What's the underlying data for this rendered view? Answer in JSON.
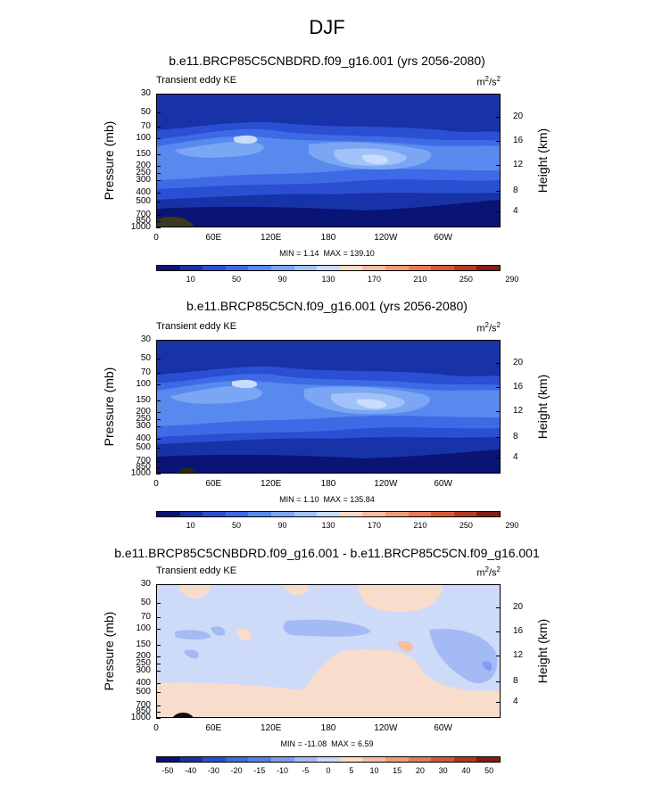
{
  "figure": {
    "title": "DJF"
  },
  "colors": {
    "abs_palette": [
      "#0a1475",
      "#1832a8",
      "#2a4fd2",
      "#3e6ae6",
      "#5889ee",
      "#7aa6f4",
      "#a0c2f8",
      "#c9dcfb",
      "#f7d8c8",
      "#f6bba0",
      "#f29a78",
      "#e97954",
      "#d85a35",
      "#b43a22",
      "#861c12"
    ],
    "diff_palette": [
      "#0a1475",
      "#1832a8",
      "#2a4fd2",
      "#3e6ae6",
      "#5a7fe8",
      "#7f9cf0",
      "#a4baf5",
      "#cddbf8",
      "#f8ddcc",
      "#f3c0a3",
      "#ee9d7b",
      "#e47a57",
      "#d35737",
      "#b23722",
      "#861c12"
    ]
  },
  "chart_data": [
    {
      "type": "heatmap",
      "title": "b.e11.BRCP85C5CNBDRD.f09_g16.001 (yrs 2056-2080)",
      "field": "Transient eddy KE",
      "units_base": "m",
      "units_exp1": "2",
      "units_sep": "/s",
      "units_exp2": "2",
      "ylabel": "Pressure (mb)",
      "ylabel_right": "Height (km)",
      "yticks": [
        "30",
        "50",
        "70",
        "100",
        "150",
        "200",
        "250",
        "300",
        "400",
        "500",
        "700",
        "850",
        "1000"
      ],
      "yticks_right": [
        "20",
        "16",
        "12",
        "8",
        "4"
      ],
      "xticks": [
        "0",
        "60E",
        "120E",
        "180",
        "120W",
        "60W"
      ],
      "min_label": "MIN =",
      "min": "1.14",
      "max_label": "MAX =",
      "max": "139.10",
      "colorbar_labels": [
        "10",
        "50",
        "90",
        "130",
        "170",
        "210",
        "250",
        "290"
      ]
    },
    {
      "type": "heatmap",
      "title": "b.e11.BRCP85C5CN.f09_g16.001 (yrs 2056-2080)",
      "field": "Transient eddy KE",
      "units_base": "m",
      "units_exp1": "2",
      "units_sep": "/s",
      "units_exp2": "2",
      "ylabel": "Pressure (mb)",
      "ylabel_right": "Height (km)",
      "yticks": [
        "30",
        "50",
        "70",
        "100",
        "150",
        "200",
        "250",
        "300",
        "400",
        "500",
        "700",
        "850",
        "1000"
      ],
      "yticks_right": [
        "20",
        "16",
        "12",
        "8",
        "4"
      ],
      "xticks": [
        "0",
        "60E",
        "120E",
        "180",
        "120W",
        "60W"
      ],
      "min_label": "MIN =",
      "min": "1.10",
      "max_label": "MAX =",
      "max": "135.84",
      "colorbar_labels": [
        "10",
        "50",
        "90",
        "130",
        "170",
        "210",
        "250",
        "290"
      ]
    },
    {
      "type": "heatmap",
      "title": "b.e11.BRCP85C5CNBDRD.f09_g16.001 - b.e11.BRCP85C5CN.f09_g16.001",
      "field": "Transient eddy KE",
      "units_base": "m",
      "units_exp1": "2",
      "units_sep": "/s",
      "units_exp2": "2",
      "ylabel": "Pressure (mb)",
      "ylabel_right": "Height (km)",
      "yticks": [
        "30",
        "50",
        "70",
        "100",
        "150",
        "200",
        "250",
        "300",
        "400",
        "500",
        "700",
        "850",
        "1000"
      ],
      "yticks_right": [
        "20",
        "16",
        "12",
        "8",
        "4"
      ],
      "xticks": [
        "0",
        "60E",
        "120E",
        "180",
        "120W",
        "60W"
      ],
      "min_label": "MIN =",
      "min": "-11.08",
      "max_label": "MAX =",
      "max": "6.59",
      "colorbar_labels": [
        "-50",
        "-40",
        "-30",
        "-20",
        "-15",
        "-10",
        "-5",
        "0",
        "5",
        "10",
        "15",
        "20",
        "30",
        "40",
        "50"
      ]
    }
  ]
}
